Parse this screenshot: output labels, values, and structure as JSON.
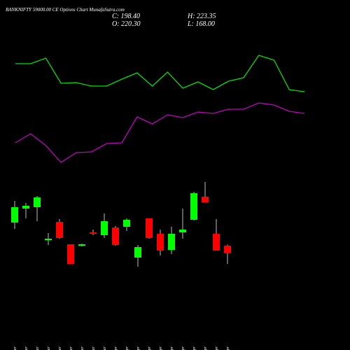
{
  "chart_data": {
    "type": "candlestick",
    "title": "BANKNIFTY 59000.00 CE Options Chart MunafaSutra.com",
    "info": [
      "C: 198.40",
      "H: 223.35",
      "O: 220.30",
      "L: 168.00"
    ],
    "categories": [
      "16 Mar",
      "17 Mar",
      "18 Mar",
      "19 Mar",
      "20 Mar",
      "23 Mar",
      "24 Mar",
      "25 Mar",
      "27 Mar",
      "09 Apr",
      "10 Apr",
      "13 Apr",
      "15 Apr",
      "16 Apr",
      "17 Apr",
      "20 Apr",
      "21 Apr",
      "22 Apr",
      "23 Apr",
      "24 Apr"
    ],
    "open": [
      286,
      326,
      330,
      236,
      288,
      224,
      220,
      258,
      250,
      272,
      274,
      186,
      298,
      254,
      208,
      258,
      294,
      360,
      254,
      220.3
    ],
    "high": [
      348,
      342,
      362,
      256,
      296,
      224,
      226,
      266,
      312,
      276,
      298,
      222,
      298,
      266,
      274,
      326,
      374,
      402,
      296,
      223.35
    ],
    "low": [
      268,
      298,
      290,
      222,
      240,
      168,
      218,
      250,
      242,
      220,
      262,
      160,
      240,
      192,
      196,
      240,
      292,
      344,
      206,
      168.0
    ],
    "close": [
      330,
      334,
      358,
      240,
      242,
      168,
      224,
      254,
      290,
      222,
      294,
      216,
      242,
      206,
      254,
      266,
      370,
      344,
      206,
      198.4
    ],
    "up_color": "#00ff00",
    "down_color": "#ff0000",
    "ylim": [
      142,
      422
    ],
    "series": [
      {
        "color": "#00e000",
        "axis": "y2",
        "values": [
          159,
          159,
          167,
          131,
          132,
          127,
          127,
          137,
          146,
          127,
          147,
          124,
          133,
          122,
          134,
          139,
          171,
          164,
          122,
          119
        ]
      },
      {
        "color": "#c000c0",
        "axis": "y2",
        "values": [
          46,
          59,
          42,
          18,
          32,
          33,
          45,
          46,
          83,
          73,
          86,
          82,
          90,
          88,
          94,
          94,
          103,
          100,
          91,
          88
        ]
      }
    ],
    "y2lim": [
      0,
      250
    ]
  }
}
